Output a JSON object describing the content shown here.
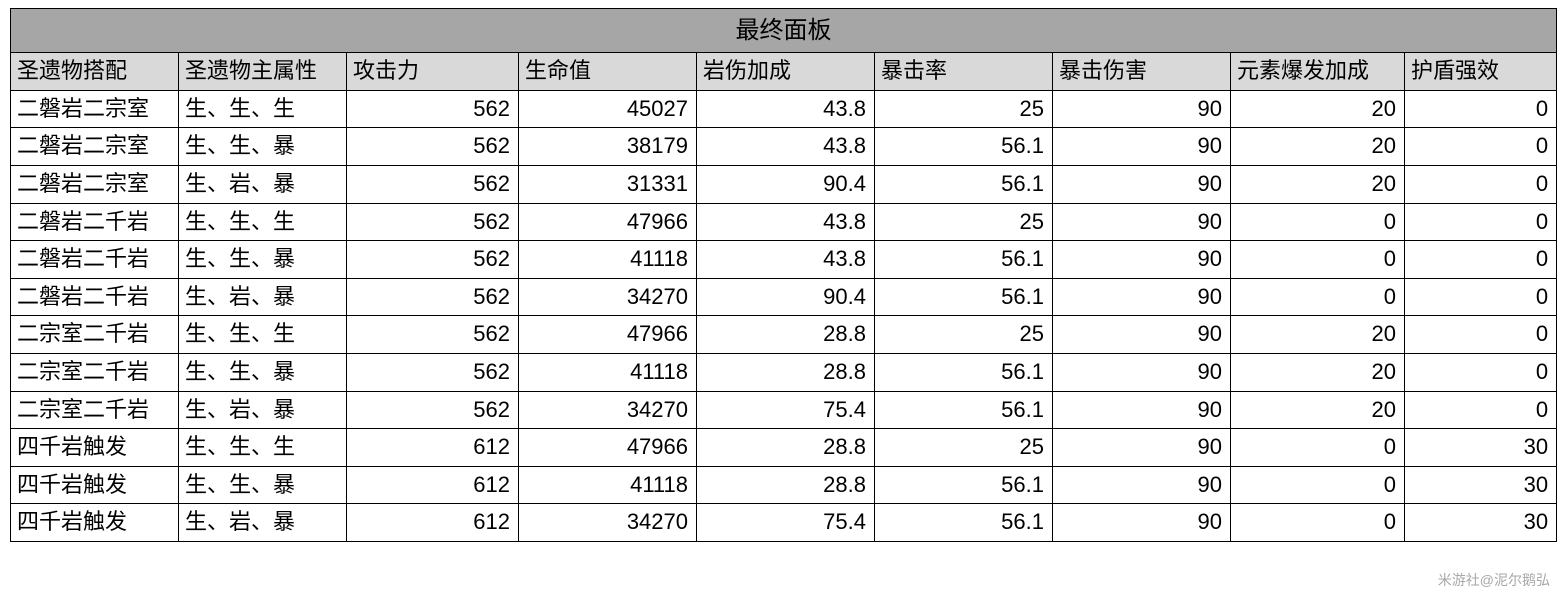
{
  "table": {
    "title": "最终面板",
    "columns": [
      {
        "key": "set",
        "label": "圣遗物搭配",
        "class": "col-set",
        "align": "left"
      },
      {
        "key": "main",
        "label": "圣遗物主属性",
        "class": "col-main",
        "align": "left"
      },
      {
        "key": "atk",
        "label": "攻击力",
        "class": "col-atk",
        "align": "right"
      },
      {
        "key": "hp",
        "label": "生命值",
        "class": "col-hp",
        "align": "right"
      },
      {
        "key": "geo",
        "label": "岩伤加成",
        "class": "col-geo",
        "align": "right"
      },
      {
        "key": "cr",
        "label": "暴击率",
        "class": "col-cr",
        "align": "right"
      },
      {
        "key": "cd",
        "label": "暴击伤害",
        "class": "col-cd",
        "align": "right"
      },
      {
        "key": "burst",
        "label": "元素爆发加成",
        "class": "col-burst",
        "align": "right"
      },
      {
        "key": "shield",
        "label": "护盾强效",
        "class": "col-shield",
        "align": "right"
      }
    ],
    "rows": [
      [
        "二磐岩二宗室",
        "生、生、生",
        "562",
        "45027",
        "43.8",
        "25",
        "90",
        "20",
        "0"
      ],
      [
        "二磐岩二宗室",
        "生、生、暴",
        "562",
        "38179",
        "43.8",
        "56.1",
        "90",
        "20",
        "0"
      ],
      [
        "二磐岩二宗室",
        "生、岩、暴",
        "562",
        "31331",
        "90.4",
        "56.1",
        "90",
        "20",
        "0"
      ],
      [
        "二磐岩二千岩",
        "生、生、生",
        "562",
        "47966",
        "43.8",
        "25",
        "90",
        "0",
        "0"
      ],
      [
        "二磐岩二千岩",
        "生、生、暴",
        "562",
        "41118",
        "43.8",
        "56.1",
        "90",
        "0",
        "0"
      ],
      [
        "二磐岩二千岩",
        "生、岩、暴",
        "562",
        "34270",
        "90.4",
        "56.1",
        "90",
        "0",
        "0"
      ],
      [
        "二宗室二千岩",
        "生、生、生",
        "562",
        "47966",
        "28.8",
        "25",
        "90",
        "20",
        "0"
      ],
      [
        "二宗室二千岩",
        "生、生、暴",
        "562",
        "41118",
        "28.8",
        "56.1",
        "90",
        "20",
        "0"
      ],
      [
        "二宗室二千岩",
        "生、岩、暴",
        "562",
        "34270",
        "75.4",
        "56.1",
        "90",
        "20",
        "0"
      ],
      [
        "四千岩触发",
        "生、生、生",
        "612",
        "47966",
        "28.8",
        "25",
        "90",
        "0",
        "30"
      ],
      [
        "四千岩触发",
        "生、生、暴",
        "612",
        "41118",
        "28.8",
        "56.1",
        "90",
        "0",
        "30"
      ],
      [
        "四千岩触发",
        "生、岩、暴",
        "612",
        "34270",
        "75.4",
        "56.1",
        "90",
        "0",
        "30"
      ]
    ]
  },
  "watermark": "米游社@泥尔鹅弘",
  "style": {
    "title_bg": "#a6a6a6",
    "header_bg": "#d9d9d9",
    "row_bg": "#ffffff",
    "border_color": "#000000",
    "font_size_cell": 22,
    "font_size_title": 24
  }
}
